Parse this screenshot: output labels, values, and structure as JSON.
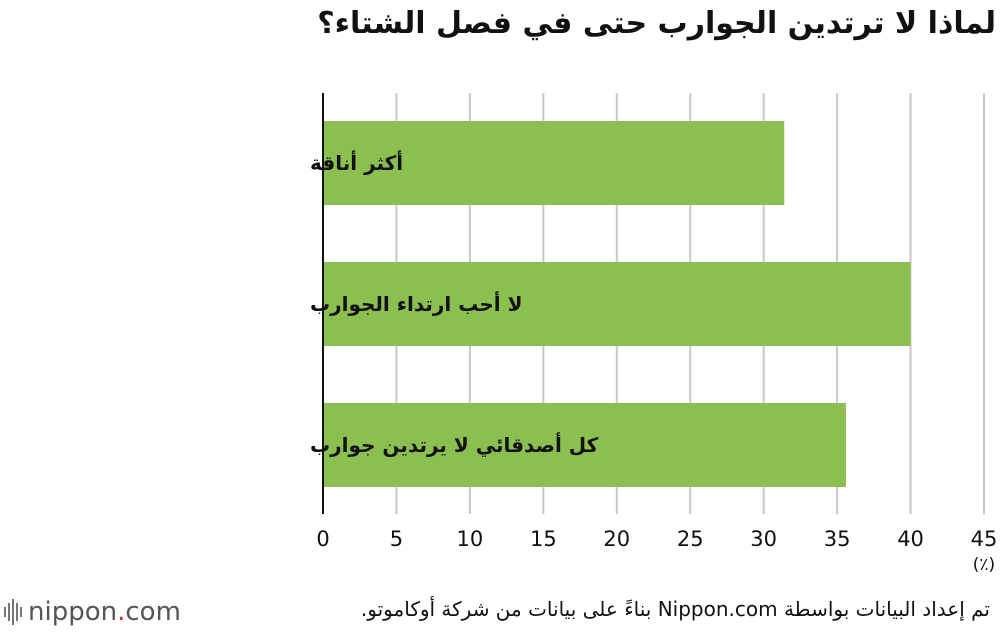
{
  "title": "لماذا لا ترتدين الجوارب حتى في فصل الشتاء؟",
  "colors": {
    "bar": "#8bbf4f",
    "grid": "#c8c8c8",
    "axis": "#111111",
    "brand_dot": "#d62828"
  },
  "chart_data": {
    "type": "bar",
    "orientation": "horizontal",
    "categories": [
      "أكثر أناقة",
      "لا أحب ارتداء الجوارب",
      "كل أصدقائي لا يرتدين جوارب"
    ],
    "values": [
      31.4,
      40.0,
      35.6
    ],
    "xlim": [
      0,
      45
    ],
    "xticks": [
      "0",
      "5",
      "10",
      "15",
      "20",
      "25",
      "30",
      "35",
      "40",
      "45"
    ],
    "unit_label": "(٪)",
    "grid": true
  },
  "footer": {
    "source": "تم إعداد البيانات بواسطة Nippon.com بناءً على بيانات من شركة أوكاموتو.",
    "brand_name": "nippon",
    "brand_dot": ".",
    "brand_tld": "com"
  }
}
